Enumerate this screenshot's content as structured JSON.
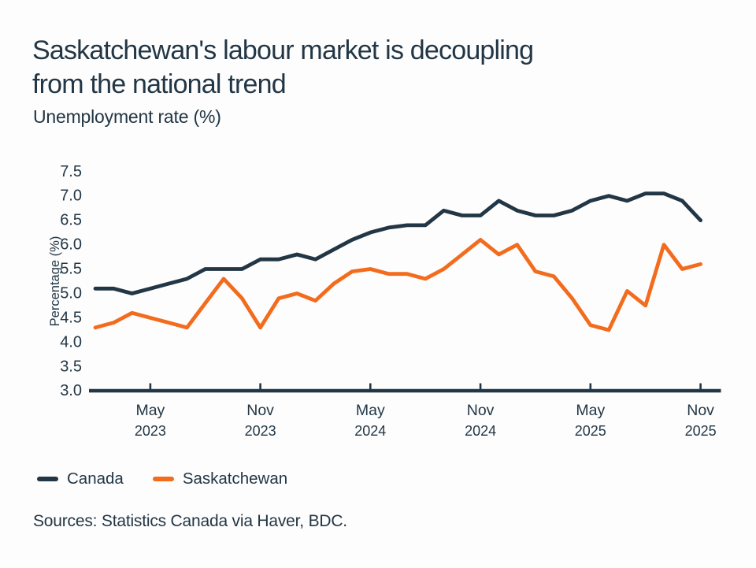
{
  "title": {
    "line1": "Saskatchewan's labour market is decoupling",
    "line2": "from the national trend",
    "full": "Saskatchewan's labour market is decoupling from the national trend"
  },
  "subtitle": "Unemployment rate (%)",
  "source": "Sources: Statistics Canada via Haver, BDC.",
  "colors": {
    "navy": "#223645",
    "orange": "#f36c1e",
    "background": "#fdfdfd"
  },
  "chart_data": {
    "type": "line",
    "title": "Saskatchewan's labour market is decoupling from the national trend",
    "subtitle": "Unemployment rate (%)",
    "ylabel": "Percentage (%)",
    "ylim": [
      3.0,
      7.5
    ],
    "yticks": [
      "3.0",
      "3.5",
      "4.0",
      "4.5",
      "5.0",
      "5.5",
      "6.0",
      "6.5",
      "7.0",
      "7.5"
    ],
    "grid": false,
    "legend_position": "bottom",
    "frequency": "monthly",
    "categories": [
      "Feb 2023",
      "Mar 2023",
      "Apr 2023",
      "May 2023",
      "Jun 2023",
      "Jul 2023",
      "Aug 2023",
      "Sep 2023",
      "Oct 2023",
      "Nov 2023",
      "Dec 2023",
      "Jan 2024",
      "Feb 2024",
      "Mar 2024",
      "Apr 2024",
      "May 2024",
      "Jun 2024",
      "Jul 2024",
      "Aug 2024",
      "Sep 2024",
      "Oct 2024",
      "Nov 2024",
      "Dec 2024",
      "Jan 2025",
      "Feb 2025",
      "Mar 2025",
      "Apr 2025",
      "May 2025",
      "Jun 2025",
      "Jul 2025",
      "Aug 2025",
      "Sep 2025",
      "Oct 2025",
      "Nov 2025"
    ],
    "xticks": [
      {
        "index": 3,
        "month": "May",
        "year": "2023"
      },
      {
        "index": 9,
        "month": "Nov",
        "year": "2023"
      },
      {
        "index": 15,
        "month": "May",
        "year": "2024"
      },
      {
        "index": 21,
        "month": "Nov",
        "year": "2024"
      },
      {
        "index": 27,
        "month": "May",
        "year": "2025"
      },
      {
        "index": 33,
        "month": "Nov",
        "year": "2025"
      }
    ],
    "series": [
      {
        "name": "Canada",
        "color": "#223645",
        "values": [
          5.1,
          5.1,
          5.0,
          5.1,
          5.2,
          5.3,
          5.5,
          5.5,
          5.5,
          5.7,
          5.7,
          5.8,
          5.7,
          5.9,
          6.1,
          6.25,
          6.35,
          6.4,
          6.4,
          6.7,
          6.6,
          6.6,
          6.9,
          6.7,
          6.6,
          6.6,
          6.7,
          6.9,
          7.0,
          6.9,
          7.05,
          7.05,
          6.9,
          6.5
        ]
      },
      {
        "name": "Saskatchewan",
        "color": "#f36c1e",
        "values": [
          4.3,
          4.4,
          4.6,
          4.5,
          4.4,
          4.3,
          4.8,
          5.3,
          4.9,
          4.3,
          4.9,
          5.0,
          4.85,
          5.2,
          5.45,
          5.5,
          5.4,
          5.4,
          5.3,
          5.5,
          5.8,
          6.1,
          5.8,
          6.0,
          5.45,
          5.35,
          4.9,
          4.35,
          4.25,
          5.05,
          4.75,
          6.0,
          5.5,
          5.6
        ]
      }
    ]
  }
}
